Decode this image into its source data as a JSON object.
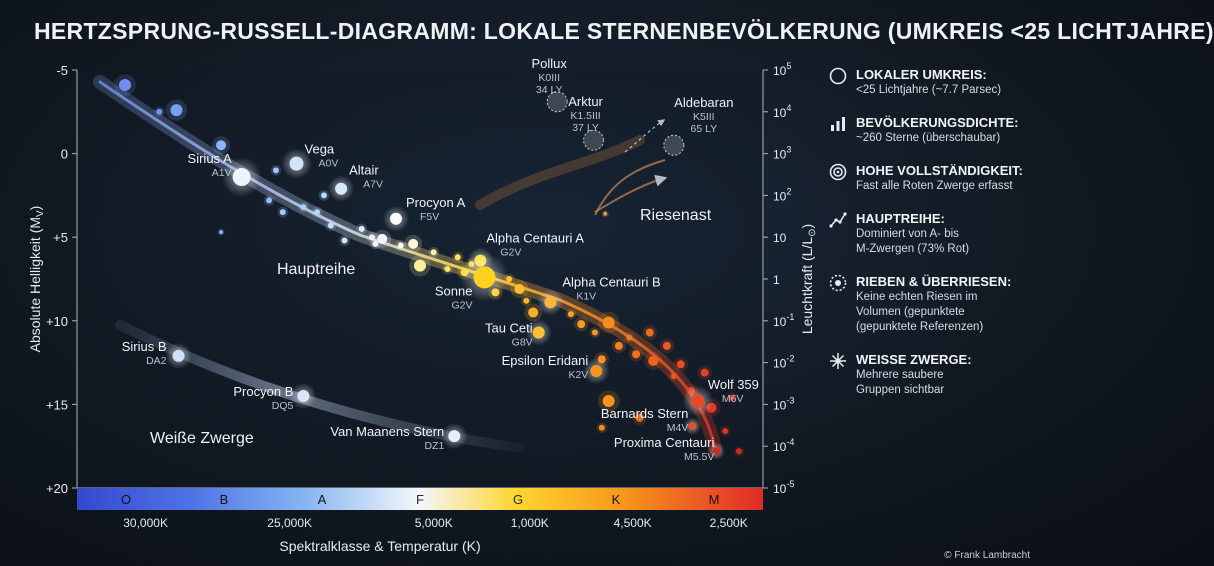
{
  "title": "HERTZSPRUNG-RUSSELL-DIAGRAMM: LOKALE STERNENBEVÖLKERUNG (UMKREIS <25 LICHTJAHRE)",
  "credit": "© Frank Lambracht",
  "colors": {
    "O": "#3f55d8",
    "B": "#5a86ee",
    "A": "#a9d2f8",
    "F": "#f5f7fb",
    "G": "#ffd23a",
    "K": "#f7931e",
    "M": "#e0382a"
  },
  "legend": [
    {
      "icon": "compass-icon",
      "title": "LOKALER UMKREIS:",
      "lines": [
        "<25 Lichtjahre (~7.7 Parsec)"
      ]
    },
    {
      "icon": "bar-chart-icon",
      "title": "BEVÖLKERUNGSDICHTE:",
      "lines": [
        "~260 Sterne (überschaubar)"
      ]
    },
    {
      "icon": "target-icon",
      "title": "HOHE VOLLSTÄNDIGKEIT:",
      "lines": [
        "Fast alle Roten Zwerge erfasst"
      ]
    },
    {
      "icon": "trend-line-icon",
      "title": "HAUPTREIHE:",
      "lines": [
        "Dominiert von A- bis",
        "M-Zwergen (73% Rot)"
      ]
    },
    {
      "icon": "dotted-circle-icon",
      "title": "RIEBEN & ÜBERRIESEN:",
      "lines": [
        "Keine echten Riesen im",
        "Volumen (gepunktete",
        "(gepunktete Referenzen)"
      ]
    },
    {
      "icon": "starburst-icon",
      "title": "WEISSE ZWERGE:",
      "lines": [
        "Mehrere saubere",
        "Gruppen sichtbar"
      ]
    }
  ],
  "chart_data": {
    "type": "scatter",
    "ylabel": "Absolute Helligkeit (M",
    "ylabel_sub": "V",
    "ylabel_close": ")",
    "ylim": [
      -5,
      20
    ],
    "y_ticks": [
      "-5",
      "0",
      "+5",
      "+10",
      "+15",
      "+20"
    ],
    "y_tick_values": [
      -5,
      0,
      5,
      10,
      15,
      20
    ],
    "y2label": "Leuchtkraft (L/L",
    "y2label_close": ")",
    "y2_ticks": [
      {
        "base": "10",
        "exp": "5",
        "mag": -5
      },
      {
        "base": "10",
        "exp": "4",
        "mag": -2.5
      },
      {
        "base": "10",
        "exp": "3",
        "mag": 0
      },
      {
        "base": "10",
        "exp": "2",
        "mag": 2.5
      },
      {
        "base": "10",
        "exp": "",
        "mag": 5
      },
      {
        "base": "1",
        "exp": "",
        "mag": 7.5
      },
      {
        "base": "10",
        "exp": "-1",
        "mag": 10
      },
      {
        "base": "10",
        "exp": "-2",
        "mag": 12.5
      },
      {
        "base": "10",
        "exp": "-3",
        "mag": 15
      },
      {
        "base": "10",
        "exp": "-4",
        "mag": 17.5
      },
      {
        "base": "10",
        "exp": "-5",
        "mag": 20
      }
    ],
    "xlabel": "Spektralklasse & Temperatur (K)",
    "spectral_classes": [
      "O",
      "B",
      "A",
      "F",
      "G",
      "K",
      "M"
    ],
    "temperature_ticks": [
      "30,000K",
      "25,000K",
      "5,000K",
      "1,000K",
      "4,500K",
      "2,500K"
    ],
    "region_labels": [
      "Hauptreihe",
      "Weiße Zwerge",
      "Riesenast"
    ],
    "named_stars": [
      {
        "name": "Sirius A",
        "type": "A1V",
        "x": 0.24,
        "mag": 1.4,
        "color": "#eef4ff",
        "r": 9
      },
      {
        "name": "Vega",
        "type": "A0V",
        "x": 0.32,
        "mag": 0.6,
        "color": "#cfe4ff",
        "r": 7
      },
      {
        "name": "Altair",
        "type": "A7V",
        "x": 0.385,
        "mag": 2.1,
        "color": "#d8e9ff",
        "r": 6
      },
      {
        "name": "Procyon A",
        "type": "F5V",
        "x": 0.465,
        "mag": 3.9,
        "color": "#fbfcff",
        "r": 6
      },
      {
        "name": "Alpha Centauri A",
        "type": "G2V",
        "x": 0.588,
        "mag": 6.4,
        "color": "#ffe24a",
        "r": 6
      },
      {
        "name": "Sonne",
        "type": "G2V",
        "x": 0.594,
        "mag": 7.4,
        "color": "#ffd11f",
        "r": 11
      },
      {
        "name": "Alpha Centauri B",
        "type": "K1V",
        "x": 0.69,
        "mag": 8.9,
        "color": "#ffb43a",
        "r": 6
      },
      {
        "name": "Tau Ceti",
        "type": "G8V",
        "x": 0.673,
        "mag": 10.7,
        "color": "#ffbf2e",
        "r": 6
      },
      {
        "name": "Epsilon Eridani",
        "type": "K2V",
        "x": 0.757,
        "mag": 13.0,
        "color": "#f7931e",
        "r": 6
      },
      {
        "name": "Wolf 359",
        "type": "M6V",
        "x": 0.905,
        "mag": 14.8,
        "color": "#e44a2b",
        "r": 7
      },
      {
        "name": "Barnards Stern",
        "type": "M4V",
        "x": 0.897,
        "mag": 16.3,
        "color": "#e0502d",
        "r": 4
      },
      {
        "name": "Proxima Centauri",
        "type": "M5.5V",
        "x": 0.932,
        "mag": 17.8,
        "color": "#c92e21",
        "r": 4
      },
      {
        "name": "Sirius B",
        "type": "DA2",
        "x": 0.148,
        "mag": 12.1,
        "color": "#cfe0ff",
        "r": 6
      },
      {
        "name": "Procyon B",
        "type": "DQ5",
        "x": 0.33,
        "mag": 14.5,
        "color": "#d7e6ff",
        "r": 6
      },
      {
        "name": "Van Maanens Stern",
        "type": "DZ1",
        "x": 0.55,
        "mag": 16.9,
        "color": "#e6edff",
        "r": 6
      }
    ],
    "reference_giants": [
      {
        "name": "Pollux",
        "type": "K0III",
        "dist": "34 LY",
        "x": 0.7,
        "mag": -3.1
      },
      {
        "name": "Arktur",
        "type": "K1.5III",
        "dist": "37 LY",
        "x": 0.753,
        "mag": -0.8
      },
      {
        "name": "Aldebaran",
        "type": "K5III",
        "dist": "65 LY",
        "x": 0.87,
        "mag": -0.5
      }
    ],
    "main_sequence_points": [
      [
        0.07,
        -4.1,
        "#6e8ef0",
        6
      ],
      [
        0.12,
        -2.5,
        "#6f95f3",
        3
      ],
      [
        0.145,
        -2.6,
        "#7aa0f5",
        6
      ],
      [
        0.21,
        -0.5,
        "#8fb6f8",
        5
      ],
      [
        0.29,
        1.0,
        "#9cc8fa",
        3
      ],
      [
        0.28,
        2.8,
        "#8fbdf8",
        3
      ],
      [
        0.3,
        3.5,
        "#9fcaf9",
        3
      ],
      [
        0.33,
        3.2,
        "#a9d2fa",
        3
      ],
      [
        0.35,
        3.5,
        "#b4d8fb",
        3
      ],
      [
        0.36,
        2.5,
        "#b9dbfb",
        3
      ],
      [
        0.37,
        4.3,
        "#c2e0fb",
        3
      ],
      [
        0.39,
        5.2,
        "#d0e6fb",
        3
      ],
      [
        0.415,
        4.5,
        "#dcecfc",
        3
      ],
      [
        0.43,
        5.0,
        "#e6f1fd",
        3
      ],
      [
        0.435,
        5.4,
        "#eef5fd",
        3
      ],
      [
        0.445,
        5.1,
        "#f4f8fd",
        5
      ],
      [
        0.472,
        5.5,
        "#fbfbf6",
        3
      ],
      [
        0.49,
        5.4,
        "#fff7d4",
        5
      ],
      [
        0.5,
        6.7,
        "#ffee9a",
        6
      ],
      [
        0.52,
        5.9,
        "#fff0a8",
        3
      ],
      [
        0.54,
        6.9,
        "#ffe56a",
        3
      ],
      [
        0.555,
        6.2,
        "#ffe25a",
        3
      ],
      [
        0.565,
        7.1,
        "#ffda4a",
        4
      ],
      [
        0.575,
        6.6,
        "#ffd740",
        3
      ],
      [
        0.61,
        8.3,
        "#ffcc33",
        4
      ],
      [
        0.63,
        7.5,
        "#ffc42e",
        3
      ],
      [
        0.645,
        8.1,
        "#ffbe2b",
        5
      ],
      [
        0.655,
        8.8,
        "#ffb52b",
        3
      ],
      [
        0.665,
        9.5,
        "#ffae2a",
        5
      ],
      [
        0.72,
        9.6,
        "#ffa429",
        3
      ],
      [
        0.735,
        10.2,
        "#fb9a26",
        4
      ],
      [
        0.755,
        10.7,
        "#f99425",
        3
      ],
      [
        0.775,
        10.1,
        "#f78b23",
        6
      ],
      [
        0.79,
        11.5,
        "#f58121",
        4
      ],
      [
        0.805,
        11.0,
        "#f3791f",
        3
      ],
      [
        0.815,
        12.0,
        "#f0701e",
        4
      ],
      [
        0.835,
        10.7,
        "#ee6b1e",
        4
      ],
      [
        0.84,
        12.4,
        "#ec641e",
        5
      ],
      [
        0.86,
        11.5,
        "#ea5c1f",
        4
      ],
      [
        0.87,
        13.3,
        "#e85520",
        3
      ],
      [
        0.88,
        12.6,
        "#e54d22",
        4
      ],
      [
        0.895,
        14.2,
        "#e34624",
        4
      ],
      [
        0.915,
        13.1,
        "#e14026",
        4
      ],
      [
        0.925,
        15.2,
        "#df3a27",
        5
      ],
      [
        0.945,
        16.6,
        "#d93327",
        3
      ],
      [
        0.955,
        14.6,
        "#d43026",
        3
      ],
      [
        0.965,
        17.8,
        "#c92b22",
        3
      ],
      [
        0.765,
        12.3,
        "#ff8b1f",
        4
      ],
      [
        0.775,
        14.8,
        "#f7931e",
        6
      ],
      [
        0.765,
        16.4,
        "#f48a1d",
        3
      ],
      [
        0.82,
        15.8,
        "#ef6e1e",
        4
      ],
      [
        0.21,
        4.7,
        "#8db3f7",
        2
      ],
      [
        0.77,
        3.6,
        "#e59a3c",
        2
      ]
    ]
  }
}
